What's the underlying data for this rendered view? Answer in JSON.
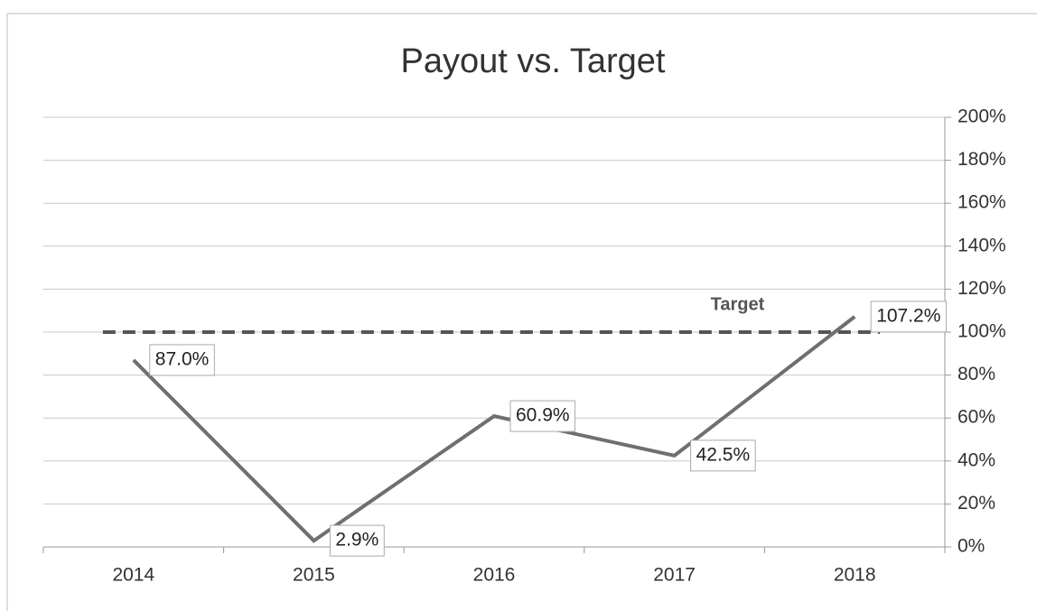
{
  "chart_data": {
    "type": "line",
    "title": "Payout vs. Target",
    "categories": [
      "2014",
      "2015",
      "2016",
      "2017",
      "2018"
    ],
    "values": [
      87.0,
      2.9,
      60.9,
      42.5,
      107.2
    ],
    "value_labels": [
      "87.0%",
      "2.9%",
      "60.9%",
      "42.5%",
      "107.2%"
    ],
    "color": "#6f6f6f",
    "ylim": [
      0,
      200
    ],
    "yticks": [
      {
        "value": 0,
        "label": "0%"
      },
      {
        "value": 20,
        "label": "20%"
      },
      {
        "value": 40,
        "label": "40%"
      },
      {
        "value": 60,
        "label": "60%"
      },
      {
        "value": 80,
        "label": "80%"
      },
      {
        "value": 100,
        "label": "100%"
      },
      {
        "value": 120,
        "label": "120%"
      },
      {
        "value": 140,
        "label": "140%"
      },
      {
        "value": 160,
        "label": "160%"
      },
      {
        "value": 180,
        "label": "180%"
      },
      {
        "value": 200,
        "label": "200%"
      }
    ],
    "y_axis_side": "right",
    "grid": true,
    "target": {
      "label": "Target",
      "value": 100,
      "color": "#555555"
    }
  }
}
